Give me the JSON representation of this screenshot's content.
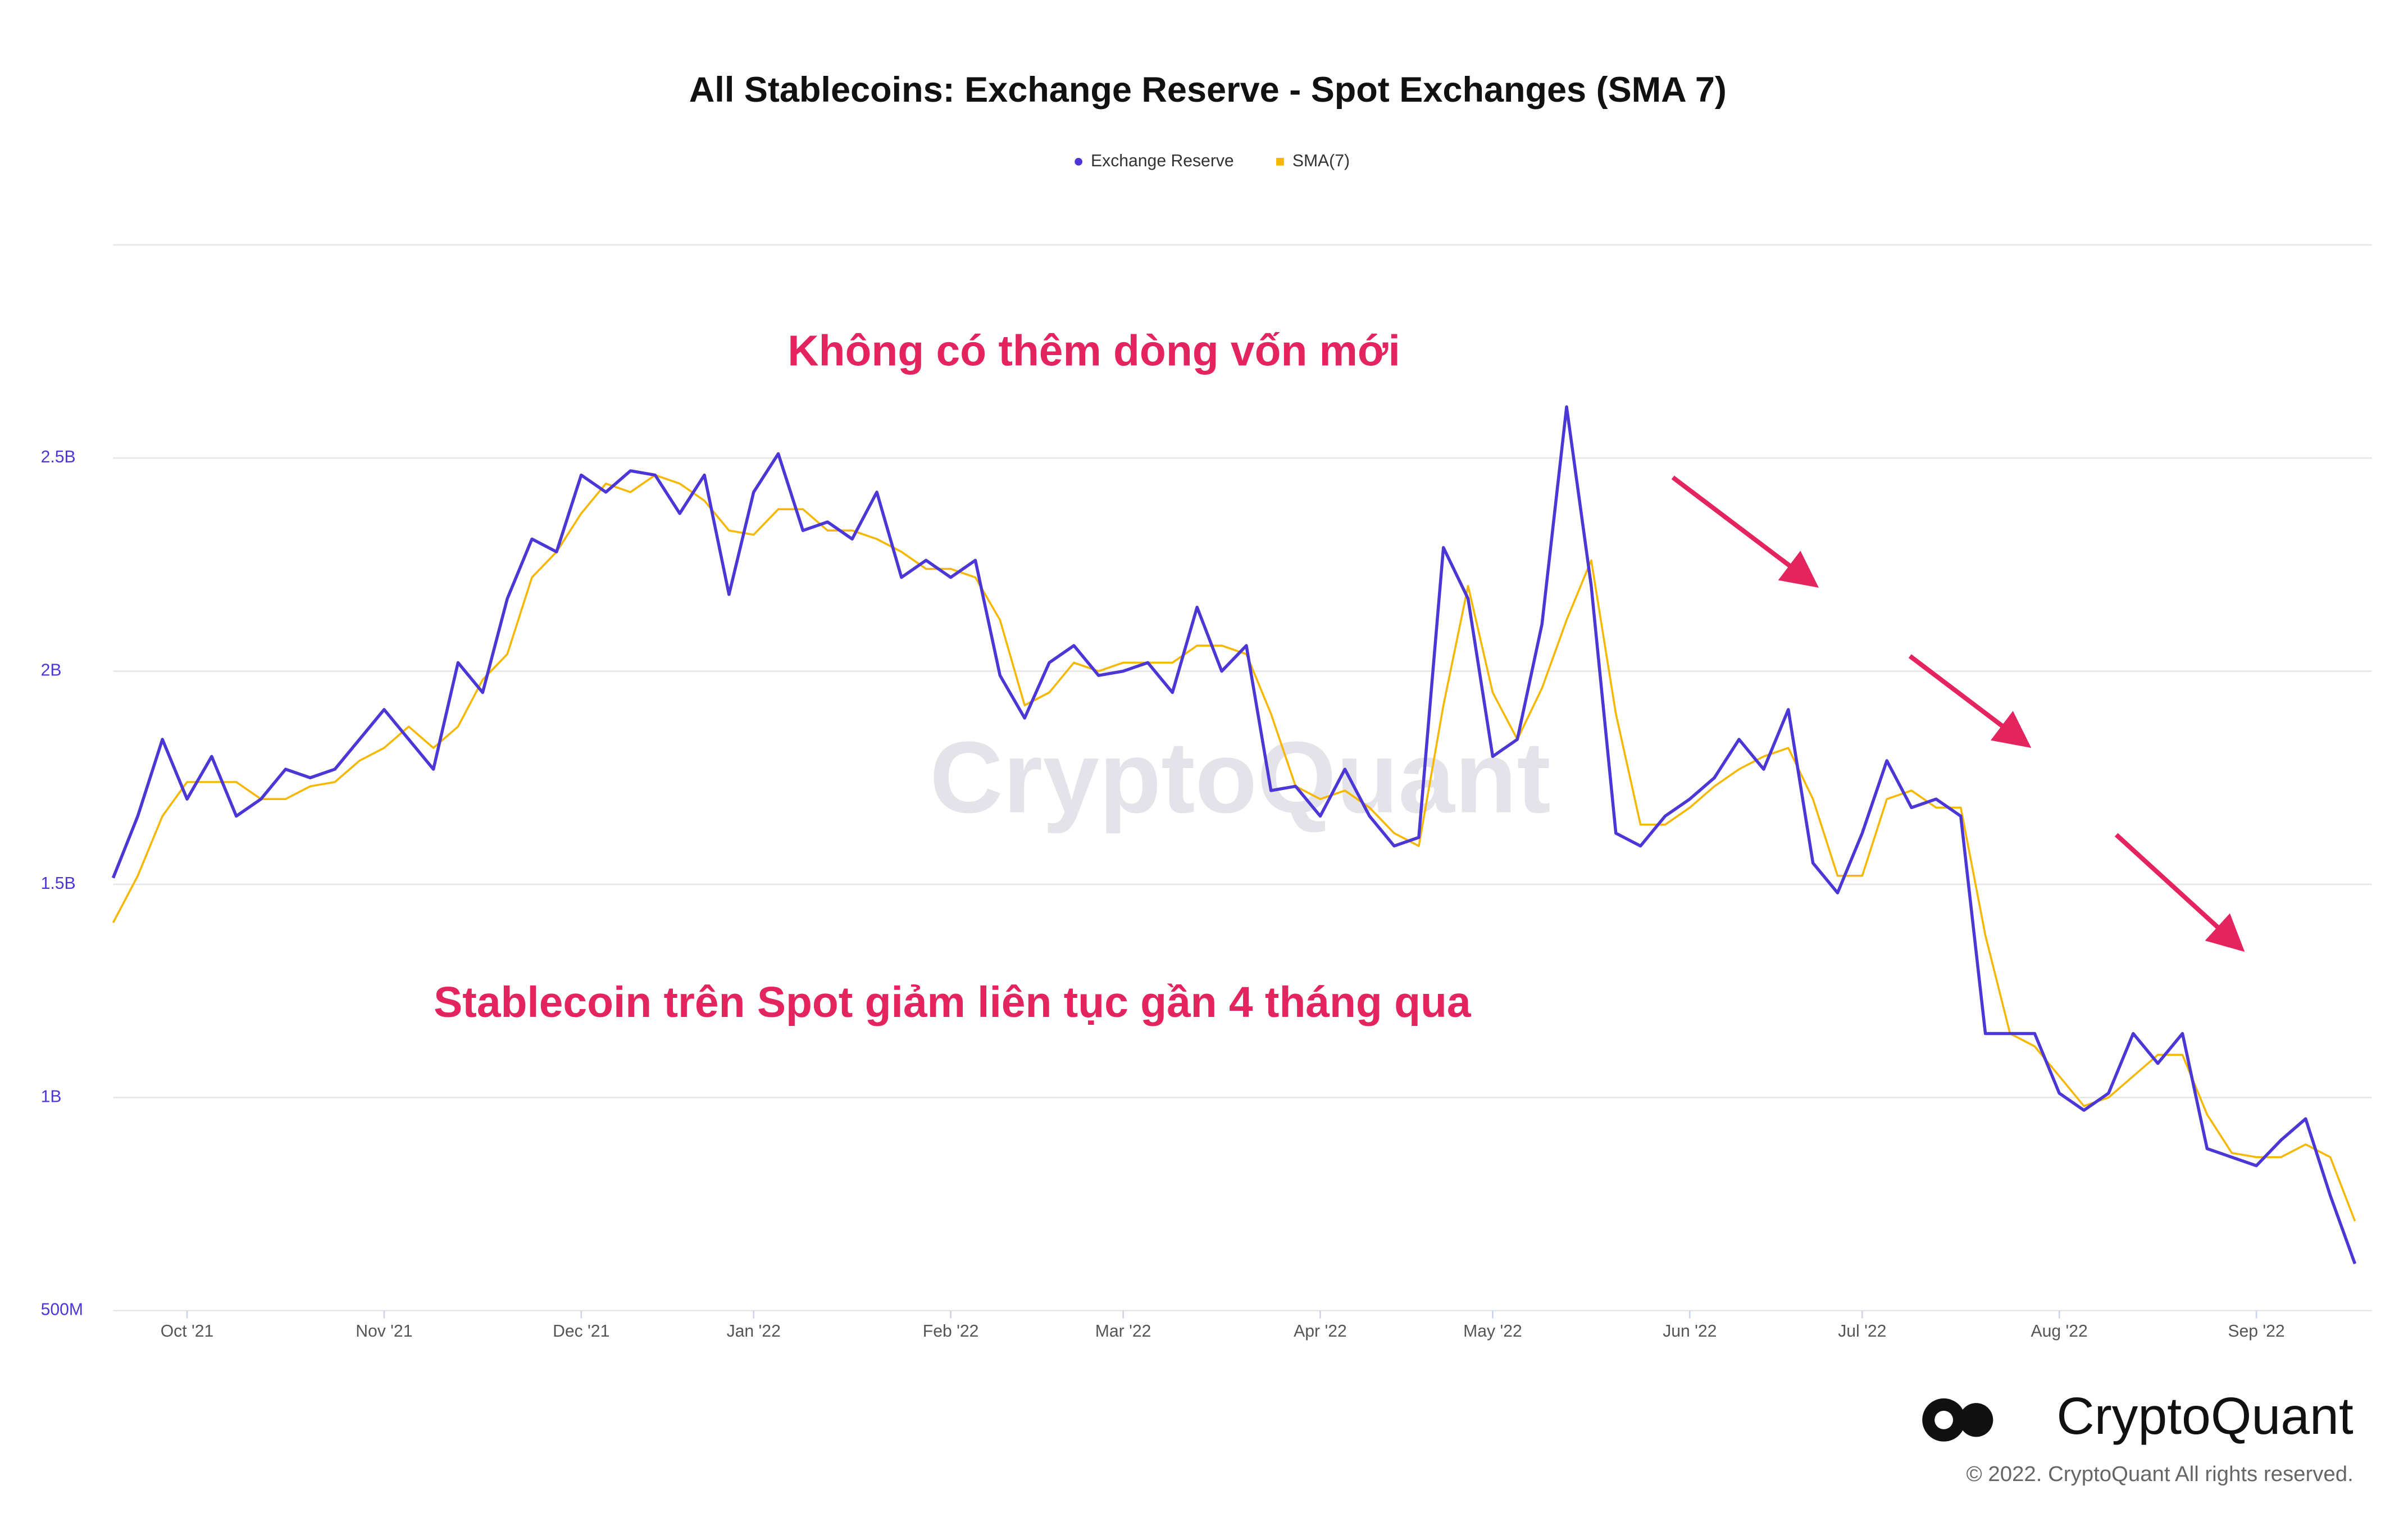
{
  "chart_data": {
    "type": "line",
    "title": "All Stablecoins: Exchange Reserve - Spot Exchanges (SMA 7)",
    "categories": [
      null,
      null,
      null,
      "Oct '21",
      null,
      null,
      null,
      null,
      null,
      null,
      null,
      "Nov '21",
      null,
      null,
      null,
      null,
      null,
      null,
      null,
      "Dec '21",
      null,
      null,
      null,
      null,
      null,
      null,
      "Jan '22",
      null,
      null,
      null,
      null,
      null,
      null,
      null,
      "Feb '22",
      null,
      null,
      null,
      null,
      null,
      null,
      "Mar '22",
      null,
      null,
      null,
      null,
      null,
      null,
      null,
      "Apr '22",
      null,
      null,
      null,
      null,
      null,
      null,
      "May '22",
      null,
      null,
      null,
      null,
      null,
      null,
      null,
      "Jun '22",
      null,
      null,
      null,
      null,
      null,
      null,
      "Jul '22",
      null,
      null,
      null,
      null,
      null,
      null,
      null,
      "Aug '22",
      null,
      null,
      null,
      null,
      null,
      null,
      null,
      "Sep '22",
      null,
      null,
      null,
      null
    ],
    "series": [
      {
        "name": "Exchange Reserve",
        "color": "#4b36d6",
        "values": [
          1515000000,
          1660000000,
          1840000000,
          1700000000,
          1800000000,
          1660000000,
          1700000000,
          1770000000,
          1750000000,
          1770000000,
          1840000000,
          1910000000,
          1840000000,
          1770000000,
          2020000000,
          1950000000,
          2170000000,
          2310000000,
          2280000000,
          2460000000,
          2420000000,
          2470000000,
          2460000000,
          2370000000,
          2460000000,
          2180000000,
          2420000000,
          2510000000,
          2330000000,
          2350000000,
          2310000000,
          2420000000,
          2220000000,
          2260000000,
          2220000000,
          2260000000,
          1990000000,
          1890000000,
          2020000000,
          2060000000,
          1990000000,
          2000000000,
          2020000000,
          1950000000,
          2150000000,
          2000000000,
          2060000000,
          1720000000,
          1730000000,
          1660000000,
          1770000000,
          1660000000,
          1590000000,
          1610000000,
          2290000000,
          2170000000,
          1800000000,
          1840000000,
          2110000000,
          2620000000,
          2200000000,
          1620000000,
          1590000000,
          1660000000,
          1700000000,
          1750000000,
          1840000000,
          1770000000,
          1910000000,
          1550000000,
          1480000000,
          1620000000,
          1790000000,
          1680000000,
          1700000000,
          1660000000,
          1150000000,
          1150000000,
          1150000000,
          1010000000,
          970000000,
          1010000000,
          1150000000,
          1080000000,
          1150000000,
          880000000,
          860000000,
          840000000,
          900000000,
          950000000,
          770000000,
          610000000
        ]
      },
      {
        "name": "SMA(7)",
        "color": "#f5b700",
        "values": [
          1410000000,
          1520000000,
          1660000000,
          1740000000,
          1740000000,
          1740000000,
          1700000000,
          1700000000,
          1730000000,
          1740000000,
          1790000000,
          1820000000,
          1870000000,
          1820000000,
          1870000000,
          1980000000,
          2040000000,
          2220000000,
          2280000000,
          2370000000,
          2440000000,
          2420000000,
          2460000000,
          2440000000,
          2400000000,
          2330000000,
          2320000000,
          2380000000,
          2380000000,
          2330000000,
          2330000000,
          2310000000,
          2280000000,
          2240000000,
          2240000000,
          2220000000,
          2120000000,
          1920000000,
          1950000000,
          2020000000,
          2000000000,
          2020000000,
          2020000000,
          2020000000,
          2060000000,
          2060000000,
          2040000000,
          1900000000,
          1730000000,
          1700000000,
          1720000000,
          1680000000,
          1620000000,
          1590000000,
          1920000000,
          2200000000,
          1950000000,
          1840000000,
          1960000000,
          2120000000,
          2260000000,
          1900000000,
          1640000000,
          1640000000,
          1680000000,
          1730000000,
          1770000000,
          1800000000,
          1820000000,
          1700000000,
          1520000000,
          1520000000,
          1700000000,
          1720000000,
          1680000000,
          1680000000,
          1380000000,
          1150000000,
          1120000000,
          1050000000,
          980000000,
          1000000000,
          1050000000,
          1100000000,
          1100000000,
          960000000,
          870000000,
          860000000,
          860000000,
          890000000,
          860000000,
          710000000
        ]
      }
    ],
    "ylim": [
      500000000,
      3000000000
    ],
    "yticks": [
      {
        "value": 500000000,
        "label": "500M"
      },
      {
        "value": 1000000000,
        "label": "1B"
      },
      {
        "value": 1500000000,
        "label": "1.5B"
      },
      {
        "value": 2000000000,
        "label": "2B"
      },
      {
        "value": 2500000000,
        "label": "2.5B"
      }
    ],
    "grid": true,
    "legend": "top",
    "annotations": [
      "Không có thêm dòng vốn mới",
      "Stablecoin trên Spot giảm liên tục gần 4 tháng qua"
    ],
    "watermark": "CryptoQuant",
    "brand": "CryptoQuant",
    "copyright": "© 2022. CryptoQuant All rights reserved."
  }
}
